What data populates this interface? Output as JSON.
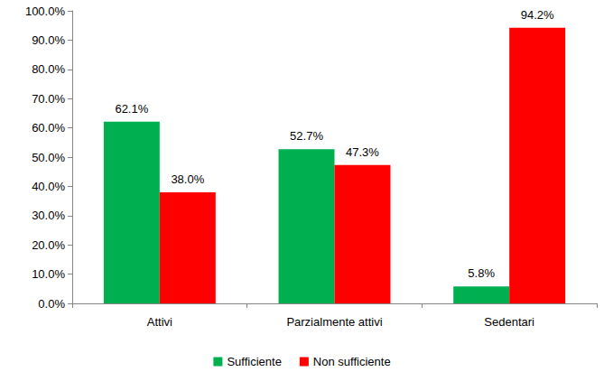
{
  "chart_data": {
    "type": "bar",
    "categories": [
      "Attivi",
      "Parzialmente attivi",
      "Sedentari"
    ],
    "series": [
      {
        "name": "Sufficiente",
        "color": "#00b050",
        "values": [
          62.1,
          52.7,
          5.8
        ],
        "value_labels": [
          "62.1%",
          "52.7%",
          "5.8%"
        ]
      },
      {
        "name": "Non sufficiente",
        "color": "#ff0000",
        "values": [
          38.0,
          47.3,
          94.2
        ],
        "value_labels": [
          "38.0%",
          "47.3%",
          "94.2%"
        ]
      }
    ],
    "ylim": [
      0,
      100
    ],
    "yticks": [
      {
        "value": 0,
        "label": "0.0%"
      },
      {
        "value": 10,
        "label": "10.0%"
      },
      {
        "value": 20,
        "label": "20.0%"
      },
      {
        "value": 30,
        "label": "30.0%"
      },
      {
        "value": 40,
        "label": "40.0%"
      },
      {
        "value": 50,
        "label": "50.0%"
      },
      {
        "value": 60,
        "label": "60.0%"
      },
      {
        "value": 70,
        "label": "70.0%"
      },
      {
        "value": 80,
        "label": "80.0%"
      },
      {
        "value": 90,
        "label": "90.0%"
      },
      {
        "value": 100,
        "label": "100.0%"
      }
    ],
    "grid": false,
    "legend": "bottom",
    "data_labels": true
  }
}
